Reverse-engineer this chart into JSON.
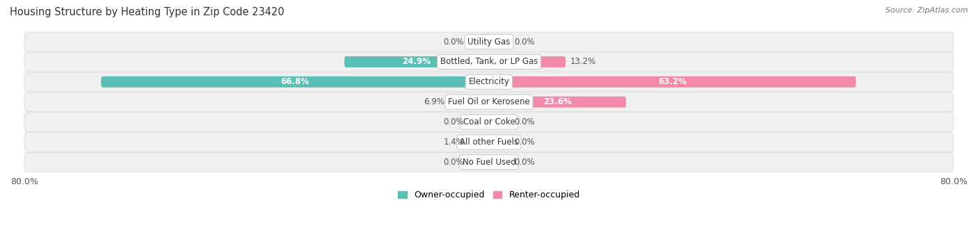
{
  "title": "Housing Structure by Heating Type in Zip Code 23420",
  "source": "Source: ZipAtlas.com",
  "categories": [
    "Utility Gas",
    "Bottled, Tank, or LP Gas",
    "Electricity",
    "Fuel Oil or Kerosene",
    "Coal or Coke",
    "All other Fuels",
    "No Fuel Used"
  ],
  "owner_values": [
    0.0,
    24.9,
    66.8,
    6.9,
    0.0,
    1.4,
    0.0
  ],
  "renter_values": [
    0.0,
    13.2,
    63.2,
    23.6,
    0.0,
    0.0,
    0.0
  ],
  "owner_color": "#5bbfb5",
  "renter_color": "#f48aaa",
  "row_bg_color": "#f0f0f0",
  "row_border_color": "#dcdcdc",
  "max_value": 80.0,
  "min_stub": 3.5,
  "white_label_threshold": 20.0,
  "title_fontsize": 10.5,
  "source_fontsize": 8,
  "tick_fontsize": 9,
  "bar_label_fontsize": 8.5,
  "category_fontsize": 8.5,
  "legend_fontsize": 9,
  "bar_height": 0.55,
  "figsize": [
    14.06,
    3.41
  ],
  "dpi": 100
}
